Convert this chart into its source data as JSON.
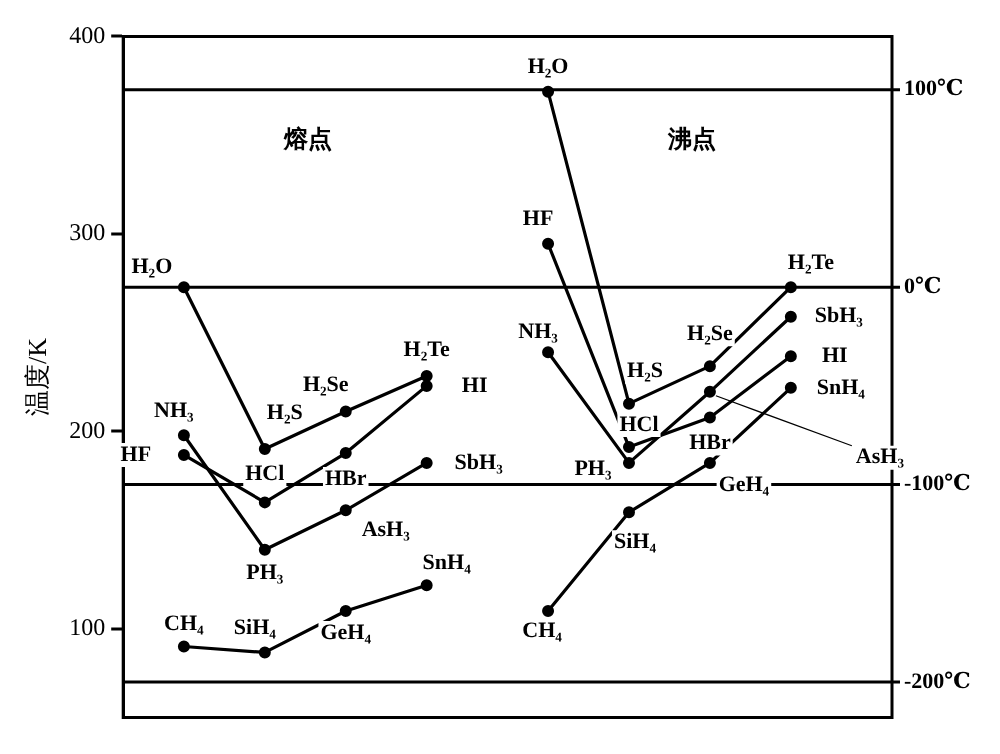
{
  "chart_data": {
    "type": "line",
    "ylabel": "温度/K",
    "categories": [
      null,
      null,
      null,
      null,
      null,
      null,
      null,
      null,
      null,
      null,
      null,
      null,
      null,
      null,
      null,
      null,
      null,
      null,
      null
    ],
    "ylim": [
      55,
      400
    ],
    "yticks": [
      100,
      200,
      300,
      400
    ],
    "grid": false,
    "legend": false,
    "marker": "circle",
    "line_style": "solid",
    "tick_labels": "y",
    "series": [
      {
        "color": "#000000",
        "values": [
          null,
          273,
          null,
          191,
          null,
          210,
          null,
          228,
          null,
          null,
          null,
          null,
          null,
          null,
          null,
          null,
          null,
          null,
          null
        ],
        "value_labels": [
          null,
          "H₂O",
          null,
          "H₂S",
          null,
          "H₂Se",
          null,
          "H₂Te",
          null,
          null,
          null,
          null,
          null,
          null,
          null,
          null,
          null,
          null,
          null
        ]
      },
      {
        "color": "#000000",
        "values": [
          null,
          188,
          null,
          164,
          null,
          189,
          null,
          223,
          null,
          null,
          null,
          null,
          null,
          null,
          null,
          null,
          null,
          null,
          null
        ],
        "value_labels": [
          null,
          "HF",
          null,
          "HCl",
          null,
          "HBr",
          null,
          "HI",
          null,
          null,
          null,
          null,
          null,
          null,
          null,
          null,
          null,
          null,
          null
        ]
      },
      {
        "color": "#000000",
        "values": [
          null,
          198,
          null,
          140,
          null,
          160,
          null,
          184,
          null,
          null,
          null,
          null,
          null,
          null,
          null,
          null,
          null,
          null,
          null
        ],
        "value_labels": [
          null,
          "NH₃",
          null,
          "PH₃",
          null,
          "AsH₃",
          null,
          "SbH₃",
          null,
          null,
          null,
          null,
          null,
          null,
          null,
          null,
          null,
          null,
          null
        ]
      },
      {
        "color": "#000000",
        "values": [
          null,
          91,
          null,
          88,
          null,
          109,
          null,
          122,
          null,
          null,
          null,
          null,
          null,
          null,
          null,
          null,
          null,
          null,
          null
        ],
        "value_labels": [
          null,
          "CH₄",
          null,
          "SiH₄",
          null,
          "GeH₄",
          null,
          "SnH₄",
          null,
          null,
          null,
          null,
          null,
          null,
          null,
          null,
          null,
          null,
          null
        ]
      },
      {
        "color": "#000000",
        "values": [
          null,
          null,
          null,
          null,
          null,
          null,
          null,
          null,
          null,
          null,
          372,
          null,
          214,
          null,
          233,
          null,
          273,
          null,
          null
        ],
        "value_labels": [
          null,
          null,
          null,
          null,
          null,
          null,
          null,
          null,
          null,
          null,
          "H₂O",
          null,
          "H₂S",
          null,
          "H₂Se",
          null,
          "H₂Te",
          null,
          null
        ]
      },
      {
        "color": "#000000",
        "values": [
          null,
          null,
          null,
          null,
          null,
          null,
          null,
          null,
          null,
          null,
          295,
          null,
          192,
          null,
          207,
          null,
          238,
          null,
          null
        ],
        "value_labels": [
          null,
          null,
          null,
          null,
          null,
          null,
          null,
          null,
          null,
          null,
          "HF",
          null,
          "HCl",
          null,
          "HBr",
          null,
          "HI",
          null,
          null
        ]
      },
      {
        "color": "#000000",
        "values": [
          null,
          null,
          null,
          null,
          null,
          null,
          null,
          null,
          null,
          null,
          240,
          null,
          184,
          null,
          220,
          null,
          258,
          null,
          null
        ],
        "value_labels": [
          null,
          null,
          null,
          null,
          null,
          null,
          null,
          null,
          null,
          null,
          "NH₃",
          null,
          "PH₃",
          null,
          "AsH₃",
          null,
          "SbH₃",
          null,
          null
        ]
      },
      {
        "color": "#000000",
        "values": [
          null,
          null,
          null,
          null,
          null,
          null,
          null,
          null,
          null,
          null,
          109,
          null,
          159,
          null,
          184,
          null,
          222,
          null,
          null
        ],
        "value_labels": [
          null,
          null,
          null,
          null,
          null,
          null,
          null,
          null,
          null,
          null,
          "CH₄",
          null,
          "SiH₄",
          null,
          "GeH₄",
          null,
          "SnH₄",
          null,
          null
        ]
      }
    ],
    "ref_lines": [
      {
        "axis": "y",
        "value": 373,
        "label": "100℃"
      },
      {
        "axis": "y",
        "value": 273,
        "label": "0℃"
      },
      {
        "axis": "y",
        "value": 173,
        "label": "-100℃"
      },
      {
        "axis": "y",
        "value": 73,
        "label": "-200℃"
      }
    ],
    "annotations": [
      "熔点",
      "沸点"
    ]
  }
}
